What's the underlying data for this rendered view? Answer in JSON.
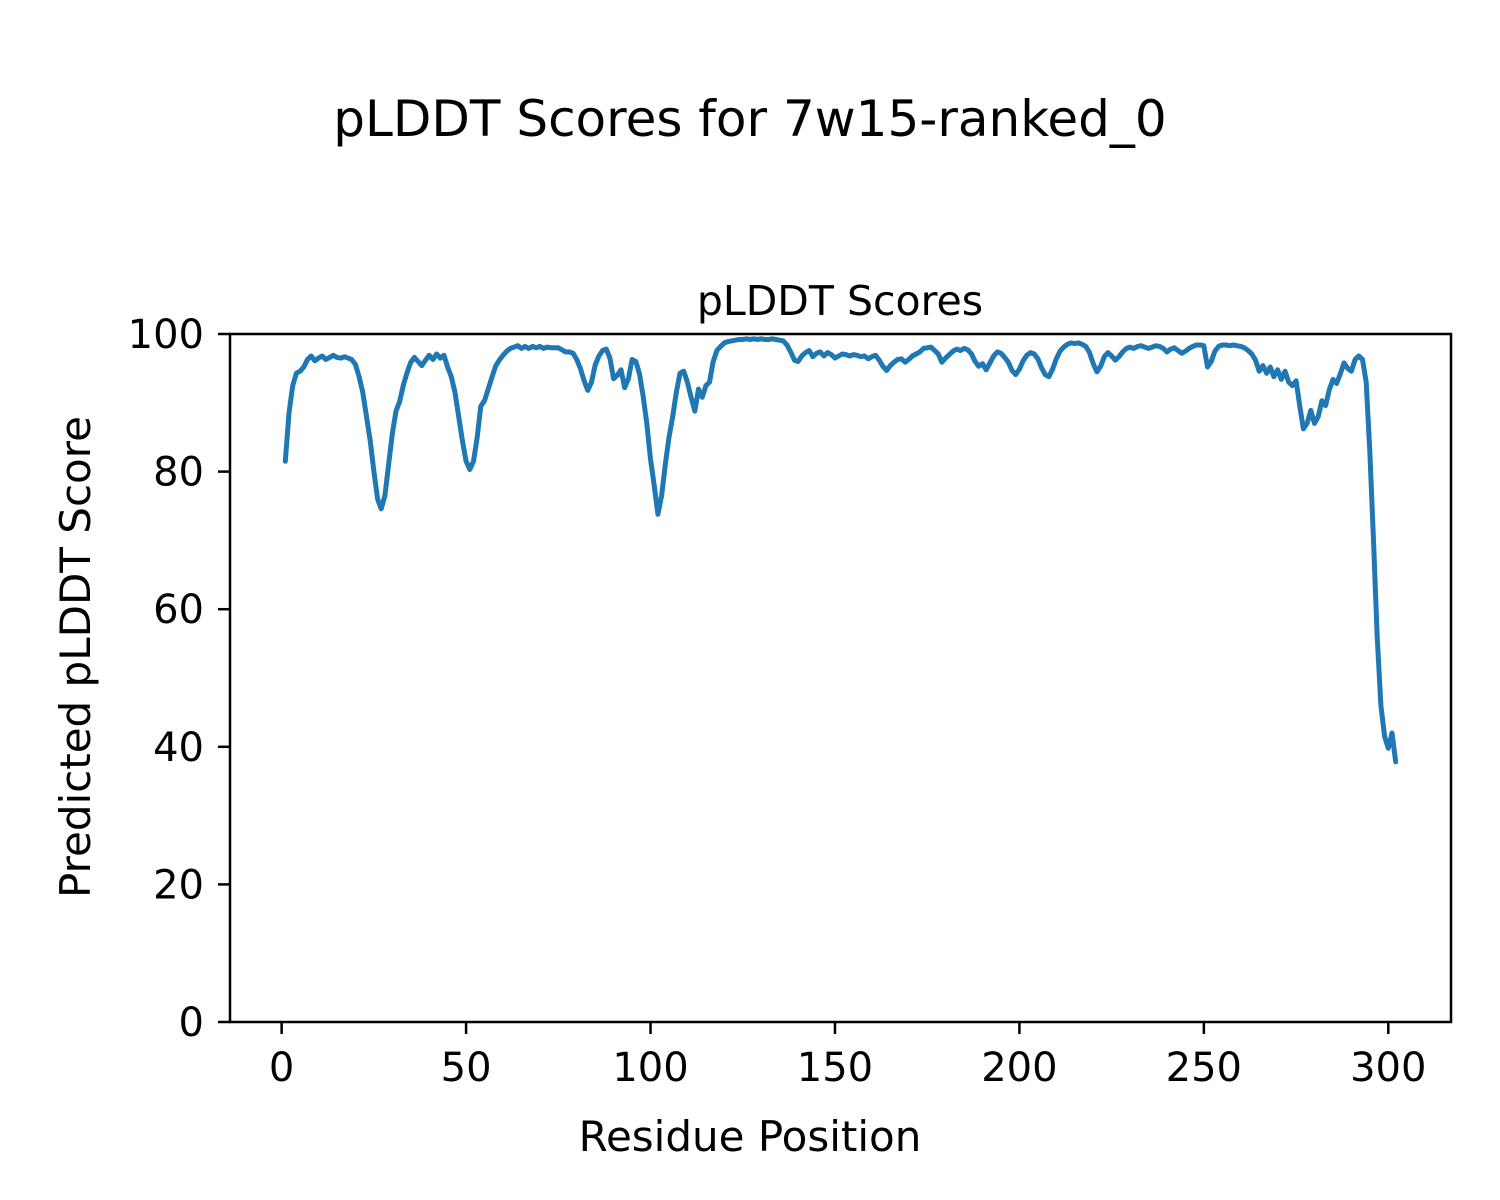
{
  "figure": {
    "suptitle": "pLDDT Scores for 7w15-ranked_0",
    "axes_title": "pLDDT Scores",
    "xlabel": "Residue Position",
    "ylabel": "Predicted pLDDT Score"
  },
  "chart_data": {
    "type": "line",
    "title": "pLDDT Scores",
    "suptitle": "pLDDT Scores for 7w15-ranked_0",
    "xlabel": "Residue Position",
    "ylabel": "Predicted pLDDT Score",
    "xlim": [
      -14,
      317
    ],
    "ylim": [
      0,
      100
    ],
    "xticks": [
      0,
      50,
      100,
      150,
      200,
      250,
      300
    ],
    "yticks": [
      0,
      20,
      40,
      60,
      80,
      100
    ],
    "grid": false,
    "legend": null,
    "line_color": "#1f77b4",
    "background": "#ffffff",
    "series": [
      {
        "name": "pLDDT",
        "x_start": 1,
        "x_step": 1,
        "values": [
          81.5,
          88.5,
          92.5,
          94.3,
          94.6,
          95.2,
          96.3,
          96.8,
          96.1,
          96.5,
          96.8,
          96.3,
          96.6,
          96.9,
          96.6,
          96.5,
          96.7,
          96.5,
          96.3,
          95.6,
          93.8,
          91.5,
          88.0,
          84.5,
          80.0,
          76.0,
          74.6,
          76.5,
          81.0,
          85.5,
          88.8,
          90.2,
          92.6,
          94.4,
          95.9,
          96.6,
          96.0,
          95.4,
          96.2,
          96.9,
          96.3,
          97.1,
          96.5,
          96.9,
          95.2,
          93.8,
          91.5,
          88.0,
          84.5,
          81.5,
          80.3,
          81.5,
          85.0,
          89.5,
          90.3,
          92.0,
          93.7,
          95.3,
          96.2,
          96.9,
          97.5,
          97.9,
          98.1,
          98.3,
          97.9,
          98.2,
          97.9,
          98.2,
          98.0,
          98.2,
          97.9,
          98.1,
          98.0,
          98.0,
          98.0,
          97.7,
          97.4,
          97.4,
          97.2,
          96.3,
          95.0,
          93.2,
          91.8,
          93.0,
          95.5,
          96.8,
          97.6,
          97.8,
          96.5,
          93.5,
          94.0,
          94.8,
          92.2,
          93.5,
          96.3,
          96.0,
          94.2,
          91.0,
          87.0,
          81.8,
          78.0,
          73.8,
          76.5,
          81.0,
          85.0,
          88.0,
          91.5,
          94.3,
          94.6,
          93.0,
          90.8,
          88.8,
          92.0,
          90.8,
          92.5,
          93.0,
          96.0,
          97.6,
          98.2,
          98.7,
          98.9,
          99.0,
          99.1,
          99.2,
          99.2,
          99.3,
          99.2,
          99.3,
          99.2,
          99.3,
          99.2,
          99.2,
          99.3,
          99.2,
          99.1,
          99.0,
          98.4,
          97.4,
          96.2,
          96.0,
          96.8,
          97.3,
          97.6,
          96.7,
          97.2,
          97.4,
          96.8,
          97.3,
          97.0,
          96.5,
          96.8,
          97.1,
          97.0,
          96.8,
          97.0,
          96.9,
          96.7,
          96.8,
          96.4,
          96.7,
          96.9,
          96.2,
          95.3,
          94.7,
          95.4,
          95.9,
          96.3,
          96.4,
          95.9,
          96.3,
          96.8,
          97.1,
          97.4,
          97.9,
          98.0,
          98.1,
          97.6,
          97.1,
          95.9,
          96.5,
          97.0,
          97.5,
          97.8,
          97.6,
          97.9,
          97.7,
          97.1,
          96.0,
          95.3,
          95.7,
          94.8,
          95.8,
          96.8,
          97.4,
          97.2,
          96.6,
          95.9,
          94.7,
          94.1,
          94.9,
          96.1,
          96.9,
          97.3,
          97.1,
          96.4,
          95.1,
          94.1,
          93.8,
          94.9,
          96.4,
          97.5,
          98.1,
          98.5,
          98.7,
          98.6,
          98.7,
          98.5,
          98.2,
          97.3,
          95.7,
          94.5,
          95.3,
          96.7,
          97.3,
          96.8,
          96.2,
          96.7,
          97.4,
          97.9,
          98.1,
          97.9,
          98.2,
          98.3,
          98.1,
          97.9,
          98.1,
          98.3,
          98.2,
          97.9,
          97.4,
          97.8,
          98.0,
          97.6,
          97.2,
          97.5,
          97.9,
          98.2,
          98.4,
          98.4,
          98.3,
          95.2,
          96.0,
          97.5,
          98.2,
          98.4,
          98.4,
          98.3,
          98.4,
          98.3,
          98.2,
          98.0,
          97.6,
          97.1,
          96.2,
          94.6,
          95.4,
          94.3,
          95.2,
          93.8,
          94.8,
          93.4,
          94.6,
          93.0,
          92.5,
          93.2,
          89.5,
          86.2,
          87.0,
          88.9,
          87.0,
          88.0,
          90.3,
          89.6,
          91.9,
          93.4,
          92.8,
          94.2,
          95.8,
          95.0,
          94.6,
          96.3,
          96.8,
          96.3,
          93.0,
          83.0,
          70.0,
          56.0,
          46.0,
          41.5,
          39.8,
          42.0,
          37.8
        ]
      }
    ]
  }
}
